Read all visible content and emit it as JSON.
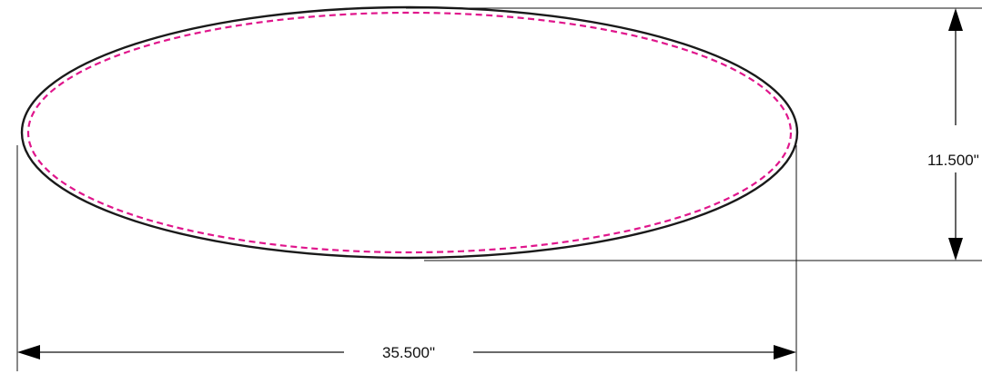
{
  "drawing": {
    "width_label": "35.500\"",
    "height_label": "11.500\"",
    "colors": {
      "outline": "#1a1a1a",
      "dashed_line": "#e0168c",
      "dimension": "#111111",
      "background": "#ffffff"
    }
  }
}
